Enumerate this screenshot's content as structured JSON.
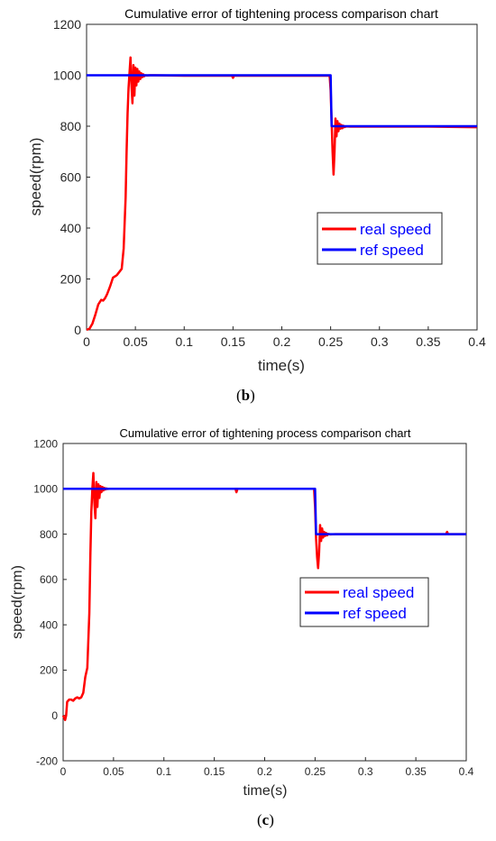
{
  "chart_data": [
    {
      "type": "line",
      "caption": "(b)",
      "caption_letter": "b",
      "title": "Cumulative error of tightening process comparison chart",
      "xlabel": "time(s)",
      "ylabel": "speed(rpm)",
      "xlim": [
        0,
        0.4
      ],
      "ylim": [
        0,
        1200
      ],
      "xticks": [
        0,
        0.05,
        0.1,
        0.15,
        0.2,
        0.25,
        0.3,
        0.35,
        0.4
      ],
      "xtick_labels": [
        "0",
        "0.05",
        "0.1",
        "0.15",
        "0.2",
        "0.25",
        "0.3",
        "0.35",
        "0.4"
      ],
      "yticks": [
        0,
        200,
        400,
        600,
        800,
        1000,
        1200
      ],
      "ytick_labels": [
        "0",
        "200",
        "400",
        "600",
        "800",
        "1000",
        "1200"
      ],
      "grid": false,
      "legend_position": "right-middle",
      "series": [
        {
          "name": "real speed",
          "color": "#ff0000",
          "x": [
            0,
            0.003,
            0.006,
            0.009,
            0.012,
            0.015,
            0.017,
            0.019,
            0.021,
            0.024,
            0.027,
            0.029,
            0.031,
            0.033,
            0.036,
            0.038,
            0.04,
            0.041,
            0.042,
            0.043,
            0.044,
            0.045,
            0.046,
            0.047,
            0.048,
            0.049,
            0.05,
            0.051,
            0.052,
            0.053,
            0.054,
            0.055,
            0.056,
            0.057,
            0.058,
            0.059,
            0.06,
            0.062,
            0.065,
            0.07,
            0.1,
            0.149,
            0.15,
            0.151,
            0.2,
            0.249,
            0.25,
            0.251,
            0.252,
            0.253,
            0.254,
            0.255,
            0.256,
            0.257,
            0.258,
            0.259,
            0.26,
            0.261,
            0.262,
            0.263,
            0.264,
            0.266,
            0.27,
            0.3,
            0.35,
            0.4
          ],
          "y": [
            0,
            5,
            25,
            60,
            100,
            118,
            115,
            125,
            140,
            170,
            205,
            210,
            215,
            225,
            240,
            320,
            520,
            700,
            850,
            950,
            1010,
            1070,
            960,
            890,
            1040,
            920,
            1030,
            960,
            1025,
            975,
            1015,
            985,
            1008,
            992,
            1004,
            996,
            1000,
            999,
            1000,
            1000,
            998,
            998,
            990,
            998,
            998,
            998,
            940,
            820,
            700,
            610,
            700,
            830,
            760,
            820,
            780,
            810,
            790,
            805,
            792,
            802,
            796,
            799,
            798,
            798,
            798,
            796
          ]
        },
        {
          "name": "ref speed",
          "color": "#0000ff",
          "x": [
            0,
            0.25,
            0.251,
            0.4
          ],
          "y": [
            1000,
            1000,
            800,
            800
          ]
        }
      ]
    },
    {
      "type": "line",
      "caption": "(c)",
      "caption_letter": "c",
      "title": "Cumulative error of tightening process comparison chart",
      "xlabel": "time(s)",
      "ylabel": "speed(rpm)",
      "xlim": [
        0,
        0.4
      ],
      "ylim": [
        -200,
        1200
      ],
      "xticks": [
        0,
        0.05,
        0.1,
        0.15,
        0.2,
        0.25,
        0.3,
        0.35,
        0.4
      ],
      "xtick_labels": [
        "0",
        "0.05",
        "0.1",
        "0.15",
        "0.2",
        "0.25",
        "0.3",
        "0.35",
        "0.4"
      ],
      "yticks": [
        -200,
        0,
        200,
        400,
        600,
        800,
        1000,
        1200
      ],
      "ytick_labels": [
        "-200",
        "0",
        "200",
        "400",
        "600",
        "800",
        "1000",
        "1200"
      ],
      "grid": false,
      "legend_position": "right-middle",
      "series": [
        {
          "name": "real speed",
          "color": "#ff0000",
          "x": [
            0,
            0.001,
            0.002,
            0.003,
            0.004,
            0.006,
            0.008,
            0.01,
            0.012,
            0.014,
            0.016,
            0.018,
            0.02,
            0.022,
            0.024,
            0.026,
            0.027,
            0.028,
            0.029,
            0.03,
            0.031,
            0.032,
            0.033,
            0.034,
            0.035,
            0.036,
            0.037,
            0.038,
            0.039,
            0.04,
            0.041,
            0.042,
            0.043,
            0.044,
            0.045,
            0.047,
            0.05,
            0.06,
            0.1,
            0.171,
            0.172,
            0.173,
            0.2,
            0.249,
            0.25,
            0.251,
            0.252,
            0.253,
            0.254,
            0.255,
            0.256,
            0.257,
            0.258,
            0.259,
            0.26,
            0.261,
            0.262,
            0.263,
            0.265,
            0.27,
            0.3,
            0.38,
            0.381,
            0.382,
            0.4
          ],
          "y": [
            0,
            -10,
            -20,
            0,
            60,
            70,
            70,
            65,
            75,
            80,
            75,
            80,
            100,
            170,
            210,
            450,
            700,
            900,
            1000,
            1070,
            940,
            870,
            1030,
            920,
            1020,
            960,
            1012,
            985,
            1008,
            993,
            1004,
            997,
            1002,
            999,
            1000,
            1000,
            1000,
            1000,
            1000,
            1000,
            985,
            1000,
            1000,
            1000,
            920,
            780,
            700,
            650,
            720,
            840,
            770,
            825,
            785,
            810,
            792,
            805,
            795,
            801,
            799,
            800,
            800,
            800,
            810,
            800,
            800
          ]
        },
        {
          "name": "ref speed",
          "color": "#0000ff",
          "x": [
            0,
            0.25,
            0.251,
            0.4
          ],
          "y": [
            1000,
            1000,
            800,
            800
          ]
        }
      ]
    }
  ]
}
